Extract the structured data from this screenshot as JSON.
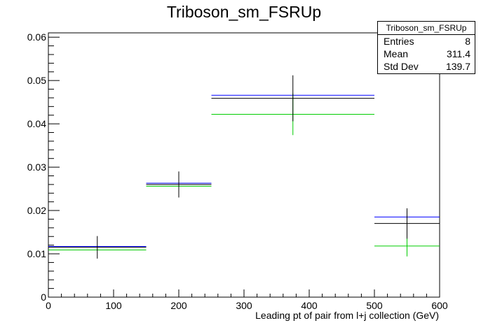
{
  "chart_data": {
    "type": "scatter",
    "title": "Triboson_sm_FSRUp",
    "xlabel": "Leading pt of pair from l+j collection (GeV)",
    "ylabel": "",
    "xlim": [
      0,
      600
    ],
    "ylim": [
      0,
      0.061
    ],
    "xticks": [
      "0",
      "100",
      "200",
      "300",
      "400",
      "500",
      "600"
    ],
    "yticks": [
      "0",
      "0.01",
      "0.02",
      "0.03",
      "0.04",
      "0.05",
      "0.06"
    ],
    "bin_edges": [
      0,
      150,
      250,
      500,
      600
    ],
    "series": [
      {
        "color": "#000000",
        "values": [
          0.0115,
          0.026,
          0.0459,
          0.017
        ],
        "errors": [
          0.0026,
          0.003,
          0.0053,
          0.0035
        ]
      },
      {
        "color": "#0000ff",
        "values": [
          0.0117,
          0.0263,
          0.0466,
          0.0185
        ],
        "errors": [
          0,
          0,
          0,
          0
        ]
      },
      {
        "color": "#00cc00",
        "values": [
          0.0109,
          0.0256,
          0.0422,
          0.0118
        ],
        "errors": [
          0.0,
          0.0,
          0.0048,
          0.0024
        ]
      }
    ],
    "stats_box": {
      "name": "Triboson_sm_FSRUp",
      "rows": [
        {
          "label": "Entries",
          "value": "8"
        },
        {
          "label": "Mean",
          "value": "311.4"
        },
        {
          "label": "Std Dev",
          "value": "139.7"
        }
      ]
    },
    "grid": false,
    "legend": "top-right"
  }
}
